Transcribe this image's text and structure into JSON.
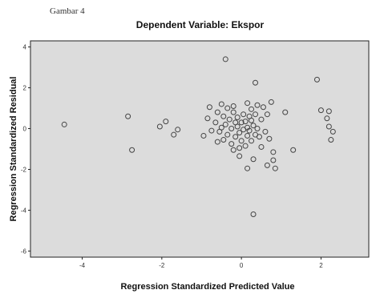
{
  "caption": "Gambar 4",
  "chart_data": {
    "type": "scatter",
    "title": "Dependent Variable: Ekspor",
    "xlabel": "Regression Standardized Predicted Value",
    "ylabel": "Regression Standardized Residual",
    "xlim": [
      -5.3,
      3.2
    ],
    "ylim": [
      -6.3,
      4.3
    ],
    "x_ticks": [
      -4,
      -2,
      0,
      2
    ],
    "y_ticks": [
      4,
      2,
      0,
      -2,
      -4,
      -6
    ],
    "x_tick_labels": [
      "-4",
      "-2",
      "0",
      "2"
    ],
    "y_tick_labels": [
      "4",
      "2",
      "0",
      "-2",
      "-4",
      "-6"
    ],
    "grid": false,
    "plot_background": "#dcdcdc",
    "marker_color": "#444444",
    "points": [
      [
        -4.45,
        0.2
      ],
      [
        -2.85,
        0.6
      ],
      [
        -2.75,
        -1.05
      ],
      [
        -2.05,
        0.1
      ],
      [
        -1.9,
        0.35
      ],
      [
        -1.7,
        -0.3
      ],
      [
        -1.6,
        -0.05
      ],
      [
        -0.95,
        -0.35
      ],
      [
        -0.85,
        0.5
      ],
      [
        -0.8,
        1.05
      ],
      [
        -0.75,
        -0.1
      ],
      [
        -0.65,
        0.3
      ],
      [
        -0.6,
        0.8
      ],
      [
        -0.55,
        -0.15
      ],
      [
        -0.5,
        1.2
      ],
      [
        -0.5,
        0.05
      ],
      [
        -0.45,
        0.6
      ],
      [
        -0.45,
        -0.55
      ],
      [
        -0.4,
        3.4
      ],
      [
        -0.4,
        0.2
      ],
      [
        -0.35,
        1.0
      ],
      [
        -0.35,
        -0.3
      ],
      [
        -0.3,
        0.45
      ],
      [
        -0.25,
        0.0
      ],
      [
        -0.25,
        -0.75
      ],
      [
        -0.2,
        1.1
      ],
      [
        -0.2,
        0.8
      ],
      [
        -0.2,
        -1.05
      ],
      [
        -0.15,
        0.3
      ],
      [
        -0.15,
        -0.4
      ],
      [
        -0.1,
        0.55
      ],
      [
        -0.1,
        0.1
      ],
      [
        -0.05,
        -0.2
      ],
      [
        -0.05,
        -1.35
      ],
      [
        0.0,
        0.3
      ],
      [
        0.0,
        -0.6
      ],
      [
        0.05,
        0.7
      ],
      [
        0.05,
        -0.05
      ],
      [
        0.1,
        0.35
      ],
      [
        0.1,
        -0.85
      ],
      [
        0.15,
        1.25
      ],
      [
        0.15,
        0.05
      ],
      [
        0.15,
        -0.35
      ],
      [
        0.2,
        0.6
      ],
      [
        0.2,
        -0.1
      ],
      [
        0.25,
        0.95
      ],
      [
        0.25,
        0.4
      ],
      [
        0.25,
        -0.6
      ],
      [
        0.3,
        0.15
      ],
      [
        0.3,
        -1.5
      ],
      [
        0.35,
        2.25
      ],
      [
        0.35,
        0.7
      ],
      [
        0.35,
        -0.3
      ],
      [
        0.4,
        1.15
      ],
      [
        0.4,
        0.0
      ],
      [
        0.45,
        -0.4
      ],
      [
        0.5,
        0.45
      ],
      [
        0.5,
        -0.9
      ],
      [
        0.55,
        1.05
      ],
      [
        0.6,
        -0.15
      ],
      [
        0.65,
        0.7
      ],
      [
        0.7,
        -0.5
      ],
      [
        0.75,
        1.3
      ],
      [
        0.8,
        -1.15
      ],
      [
        0.8,
        -1.55
      ],
      [
        0.85,
        -1.95
      ],
      [
        1.1,
        0.8
      ],
      [
        1.3,
        -1.05
      ],
      [
        1.9,
        2.4
      ],
      [
        2.0,
        0.9
      ],
      [
        2.15,
        0.5
      ],
      [
        2.2,
        0.85
      ],
      [
        2.2,
        0.1
      ],
      [
        2.25,
        -0.55
      ],
      [
        2.3,
        -0.15
      ],
      [
        0.15,
        -1.95
      ],
      [
        0.3,
        -4.2
      ],
      [
        0.65,
        -1.8
      ],
      [
        -0.05,
        -0.95
      ],
      [
        -0.6,
        -0.65
      ]
    ]
  }
}
